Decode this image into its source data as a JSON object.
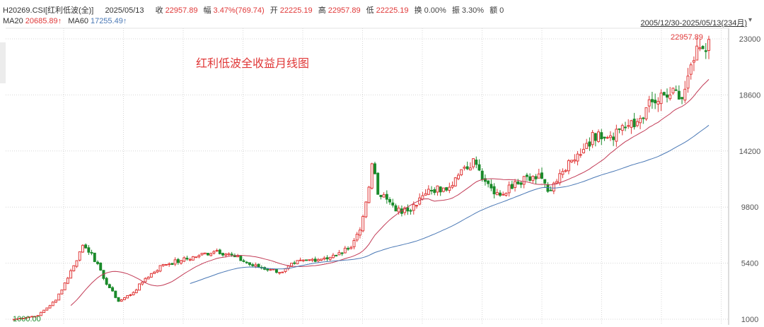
{
  "header": {
    "code": "H20269.CSI[红利低波(全)]",
    "date": "2025/05/13",
    "close_label": "收",
    "close": "22957.89",
    "change_label": "幅",
    "change": "3.47%(769.74)",
    "open_label": "开",
    "open": "22225.19",
    "high_label": "高",
    "high": "22957.89",
    "low_label": "低",
    "low": "22225.19",
    "turnover_label": "换",
    "turnover": "0.00%",
    "amplitude_label": "振",
    "amplitude": "3.30%",
    "amount_label": "额",
    "amount": "0"
  },
  "ma": {
    "ma20_label": "MA20",
    "ma20": "20685.89↑",
    "ma60_label": "MA60",
    "ma60": "17255.49↑"
  },
  "range_text": "2005/12/30-2025/05/13(234月)",
  "annotation": "红利低波全收益月线图",
  "max_label": "22957.89",
  "min_label": "1000.00",
  "colors": {
    "up": "#e03838",
    "down": "#1a8a2a",
    "ma20": "#c23b56",
    "ma60": "#4a78b5",
    "grid": "#d7d7d7"
  },
  "chart_data": {
    "type": "candlestick",
    "title": "红利低波全收益月线图",
    "period": "monthly",
    "x_range": [
      "2005/12/30",
      "2025/05/13"
    ],
    "count": 234,
    "y_ticks": [
      1000,
      5400,
      9800,
      14200,
      18600,
      23000
    ],
    "ylim": [
      1000,
      23000
    ],
    "grid": true,
    "series": [
      {
        "name": "MA20",
        "last": 20685.89
      },
      {
        "name": "MA60",
        "last": 17255.49
      }
    ],
    "anchors": [
      [
        0,
        1000
      ],
      [
        8,
        1300
      ],
      [
        14,
        2500
      ],
      [
        20,
        5200
      ],
      [
        23,
        6800
      ],
      [
        26,
        6200
      ],
      [
        30,
        4200
      ],
      [
        35,
        2400
      ],
      [
        40,
        3100
      ],
      [
        44,
        4200
      ],
      [
        50,
        5300
      ],
      [
        56,
        5600
      ],
      [
        62,
        6000
      ],
      [
        68,
        6400
      ],
      [
        74,
        5900
      ],
      [
        80,
        5200
      ],
      [
        86,
        4900
      ],
      [
        90,
        4700
      ],
      [
        94,
        5400
      ],
      [
        100,
        5700
      ],
      [
        104,
        5800
      ],
      [
        108,
        6000
      ],
      [
        112,
        6500
      ],
      [
        116,
        8000
      ],
      [
        118,
        10200
      ],
      [
        120,
        13200
      ],
      [
        122,
        10800
      ],
      [
        126,
        10200
      ],
      [
        130,
        9300
      ],
      [
        134,
        10000
      ],
      [
        140,
        11100
      ],
      [
        144,
        11300
      ],
      [
        148,
        12100
      ],
      [
        152,
        12800
      ],
      [
        154,
        13600
      ],
      [
        156,
        12700
      ],
      [
        160,
        11300
      ],
      [
        164,
        10800
      ],
      [
        168,
        11800
      ],
      [
        172,
        12200
      ],
      [
        176,
        12400
      ],
      [
        180,
        11100
      ],
      [
        184,
        12600
      ],
      [
        188,
        13500
      ],
      [
        192,
        14800
      ],
      [
        196,
        15700
      ],
      [
        200,
        15400
      ],
      [
        204,
        16200
      ],
      [
        208,
        16100
      ],
      [
        212,
        17600
      ],
      [
        216,
        18100
      ],
      [
        220,
        18600
      ],
      [
        224,
        18300
      ],
      [
        228,
        21300
      ],
      [
        230,
        22300
      ],
      [
        232,
        22000
      ],
      [
        233,
        22958
      ]
    ],
    "max": 22957.89,
    "min": 1000.0
  }
}
